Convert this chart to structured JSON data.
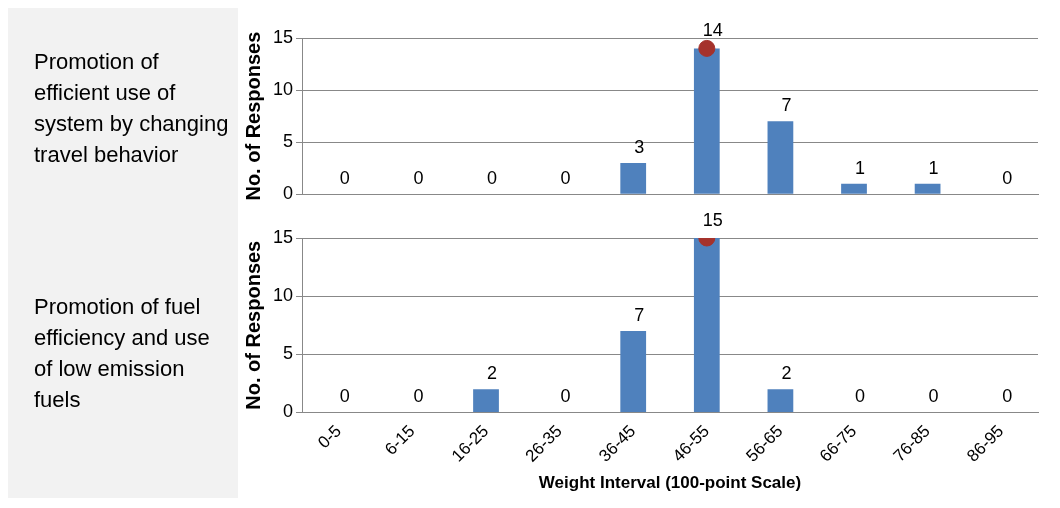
{
  "chart_data": [
    {
      "type": "bar",
      "title": "Promotion of efficient use of system by changing travel behavior",
      "ylabel": "No. of Responses",
      "categories": [
        "0-5",
        "6-15",
        "16-25",
        "26-35",
        "36-45",
        "46-55",
        "56-65",
        "66-75",
        "76-85",
        "86-95"
      ],
      "series": [
        {
          "color": "#4f81bd",
          "values": [
            0,
            0,
            0,
            0,
            3,
            14,
            7,
            1,
            1,
            0
          ],
          "value_labels": [
            "0",
            "0",
            "0",
            "0",
            "3",
            null,
            "7",
            "1",
            "1",
            "0"
          ]
        },
        {
          "type": "scatter",
          "color": "#a5322c",
          "x": [
            "46-55"
          ],
          "values": [
            14
          ],
          "marker": "circle",
          "value_labels": [
            "14"
          ]
        }
      ],
      "ylim": [
        0,
        15
      ],
      "yticks": [
        0,
        5,
        10,
        15
      ],
      "grid": "y",
      "tick_labels": "y",
      "legend": false
    },
    {
      "type": "bar",
      "title": "Promotion of fuel efficiency and use of low emission fuels",
      "ylabel": "No. of Responses",
      "xlabel": "Weight Interval (100-point Scale)",
      "categories": [
        "0-5",
        "6-15",
        "16-25",
        "26-35",
        "36-45",
        "46-55",
        "56-65",
        "66-75",
        "76-85",
        "86-95"
      ],
      "series": [
        {
          "color": "#4f81bd",
          "values": [
            0,
            0,
            2,
            0,
            7,
            15,
            2,
            0,
            0,
            0
          ],
          "value_labels": [
            "0",
            "0",
            "2",
            "0",
            "7",
            null,
            "2",
            "0",
            "0",
            "0"
          ]
        },
        {
          "type": "scatter",
          "color": "#a5322c",
          "x": [
            "46-55"
          ],
          "values": [
            15
          ],
          "marker": "circle",
          "value_labels": [
            "15"
          ]
        }
      ],
      "ylim": [
        0,
        15
      ],
      "yticks": [
        0,
        5,
        10,
        15
      ],
      "grid": "y",
      "legend": false
    }
  ]
}
